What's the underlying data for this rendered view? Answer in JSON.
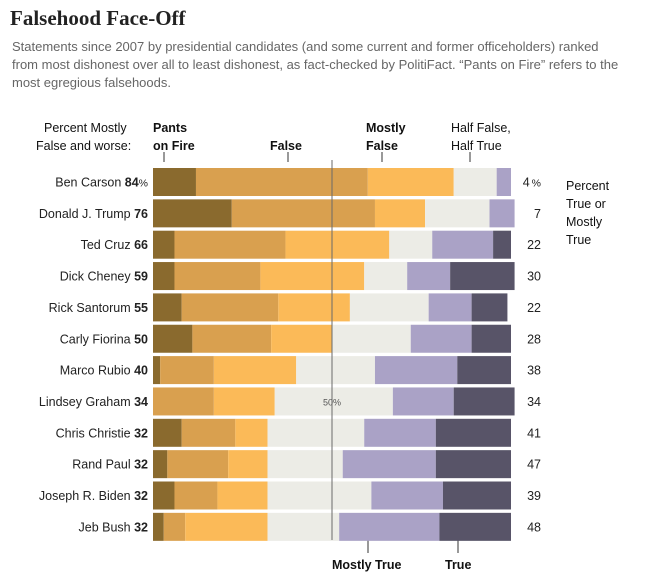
{
  "title": "Falsehood Face-Off",
  "subtitle": "Statements since 2007 by presidential candidates (and some current and former officeholders) ranked from most dishonest over all to least dishonest, as fact-checked by PolitiFact. “Pants on Fire” refers to the most egregious falsehoods.",
  "headers": {
    "left_line1": "Percent Mostly",
    "left_line2": "False and worse:",
    "pants_line1": "Pants",
    "pants_line2": "on Fire",
    "false": "False",
    "mostly_false_line1": "Mostly",
    "mostly_false_line2": "False",
    "half_line1": "Half False,",
    "half_line2": "Half True",
    "right_line1": "Percent",
    "right_line2": "True or",
    "right_line3": "Mostly",
    "right_line4": "True",
    "mostly_true_bottom": "Mostly True",
    "true_bottom": "True",
    "midline_label": "50%"
  },
  "colors": {
    "pants_on_fire": "#8a6a2e",
    "false": "#d9a04f",
    "mostly_false": "#fbba58",
    "half_true": "#ecece6",
    "mostly_true": "#aaa2c6",
    "true": "#585468"
  },
  "chart_data": {
    "type": "bar",
    "orientation": "horizontal-stacked",
    "title": "Falsehood Face-Off",
    "categories_order": [
      "Pants on Fire",
      "False",
      "Mostly False",
      "Half True",
      "Mostly True",
      "True"
    ],
    "x_range": [
      0,
      100
    ],
    "midline_value": 50,
    "rows": [
      {
        "name": "Ben Carson",
        "mf_worse": 84,
        "mf_unit": "%",
        "true_mostly": 4,
        "true_unit": "%",
        "segments": [
          12,
          48,
          24,
          12,
          4,
          0
        ]
      },
      {
        "name": "Donald J. Trump",
        "mf_worse": 76,
        "mf_unit": "",
        "true_mostly": 7,
        "true_unit": "",
        "segments": [
          22,
          40,
          14,
          18,
          7,
          0
        ]
      },
      {
        "name": "Ted Cruz",
        "mf_worse": 66,
        "mf_unit": "",
        "true_mostly": 22,
        "true_unit": "",
        "segments": [
          6,
          31,
          29,
          12,
          17,
          5
        ]
      },
      {
        "name": "Dick Cheney",
        "mf_worse": 59,
        "mf_unit": "",
        "true_mostly": 30,
        "true_unit": "",
        "segments": [
          6,
          24,
          29,
          12,
          12,
          18
        ]
      },
      {
        "name": "Rick Santorum",
        "mf_worse": 55,
        "mf_unit": "",
        "true_mostly": 22,
        "true_unit": "",
        "segments": [
          8,
          27,
          20,
          22,
          12,
          10
        ]
      },
      {
        "name": "Carly Fiorina",
        "mf_worse": 50,
        "mf_unit": "",
        "true_mostly": 28,
        "true_unit": "",
        "segments": [
          11,
          22,
          17,
          22,
          17,
          11
        ]
      },
      {
        "name": "Marco Rubio",
        "mf_worse": 40,
        "mf_unit": "",
        "true_mostly": 38,
        "true_unit": "",
        "segments": [
          2,
          15,
          23,
          22,
          23,
          15
        ]
      },
      {
        "name": "Lindsey Graham",
        "mf_worse": 34,
        "mf_unit": "",
        "true_mostly": 34,
        "true_unit": "",
        "segments": [
          0,
          17,
          17,
          33,
          17,
          17
        ]
      },
      {
        "name": "Chris Christie",
        "mf_worse": 32,
        "mf_unit": "",
        "true_mostly": 41,
        "true_unit": "",
        "segments": [
          8,
          15,
          9,
          27,
          20,
          21
        ]
      },
      {
        "name": "Rand Paul",
        "mf_worse": 32,
        "mf_unit": "",
        "true_mostly": 47,
        "true_unit": "",
        "segments": [
          4,
          17,
          11,
          21,
          26,
          21
        ]
      },
      {
        "name": "Joseph R. Biden",
        "mf_worse": 32,
        "mf_unit": "",
        "true_mostly": 39,
        "true_unit": "",
        "segments": [
          6,
          12,
          14,
          29,
          20,
          19
        ]
      },
      {
        "name": "Jeb Bush",
        "mf_worse": 32,
        "mf_unit": "",
        "true_mostly": 48,
        "true_unit": "",
        "segments": [
          3,
          6,
          23,
          20,
          28,
          20
        ]
      }
    ]
  }
}
